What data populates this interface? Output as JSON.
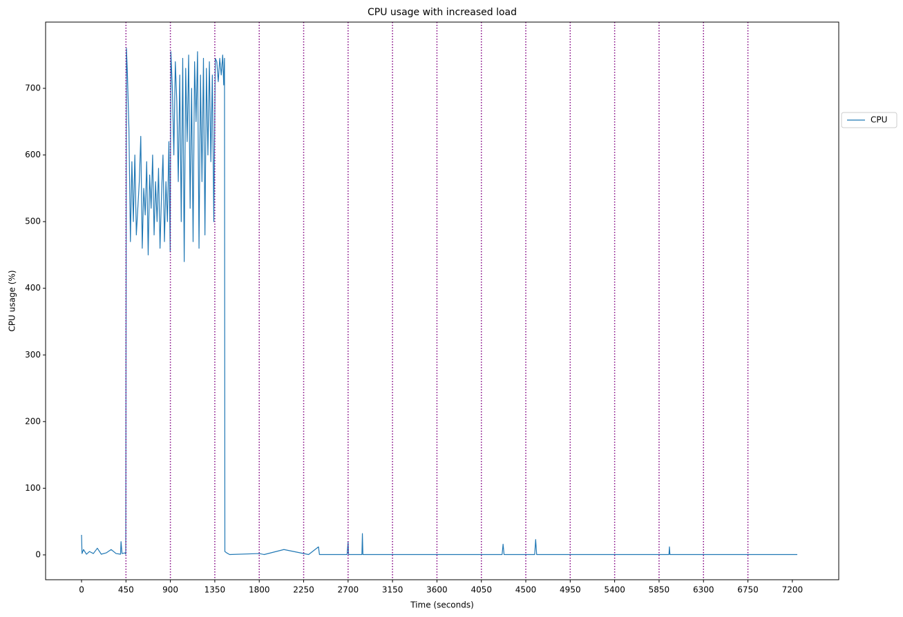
{
  "chart_data": {
    "type": "line",
    "title": "CPU usage with increased load",
    "x_label": "Time (seconds)",
    "y_label": "CPU usage (%)",
    "x": [
      0,
      5,
      20,
      50,
      80,
      120,
      160,
      200,
      250,
      300,
      350,
      395,
      400,
      410,
      440,
      448,
      455,
      465,
      480,
      495,
      510,
      525,
      540,
      555,
      570,
      585,
      600,
      615,
      630,
      645,
      660,
      675,
      690,
      705,
      720,
      735,
      750,
      765,
      780,
      795,
      810,
      825,
      840,
      855,
      870,
      885,
      898,
      905,
      920,
      935,
      950,
      965,
      980,
      995,
      1010,
      1025,
      1040,
      1055,
      1070,
      1085,
      1100,
      1115,
      1130,
      1145,
      1160,
      1175,
      1190,
      1205,
      1220,
      1235,
      1250,
      1265,
      1280,
      1295,
      1310,
      1325,
      1340,
      1355,
      1370,
      1385,
      1400,
      1415,
      1430,
      1440,
      1448,
      1452,
      1470,
      1500,
      1800,
      1850,
      2050,
      2300,
      2400,
      2410,
      2690,
      2700,
      2705,
      2840,
      2845,
      2850,
      3150,
      4000,
      4260,
      4270,
      4280,
      4590,
      4600,
      4610,
      5950,
      5955,
      5960,
      6500,
      7250
    ],
    "series": [
      {
        "name": "CPU",
        "color": "#1f77b4",
        "values": [
          30,
          2,
          8,
          1,
          5,
          2,
          10,
          1,
          3,
          8,
          2,
          1,
          20,
          2,
          3,
          1,
          760,
          720,
          640,
          470,
          590,
          500,
          600,
          480,
          520,
          560,
          628,
          460,
          550,
          510,
          590,
          450,
          570,
          520,
          600,
          480,
          560,
          500,
          580,
          460,
          540,
          600,
          470,
          560,
          500,
          620,
          455,
          755,
          700,
          600,
          740,
          680,
          560,
          720,
          500,
          745,
          440,
          730,
          620,
          750,
          520,
          700,
          470,
          740,
          650,
          755,
          460,
          720,
          560,
          745,
          480,
          730,
          600,
          740,
          590,
          720,
          500,
          745,
          740,
          710,
          745,
          720,
          750,
          705,
          745,
          5,
          3,
          0.5,
          2,
          0.5,
          8,
          0.5,
          12,
          0.5,
          0.5,
          20,
          0.5,
          0.5,
          32,
          0.5,
          0.5,
          0.5,
          0.5,
          16,
          0.5,
          0.5,
          23,
          0.5,
          0.5,
          12,
          0.5,
          0.5,
          0.5
        ]
      }
    ],
    "vlines": [
      450,
      900,
      1350,
      1800,
      2250,
      2700,
      3150,
      3600,
      4050,
      4500,
      4950,
      5400,
      5850,
      6300,
      6750
    ],
    "vline_color": "#800080",
    "xlim": [
      -364,
      7670
    ],
    "ylim": [
      -37.3,
      799.4
    ],
    "xticks": [
      0,
      450,
      900,
      1350,
      1800,
      2250,
      2700,
      3150,
      3600,
      4050,
      4500,
      4950,
      5400,
      5850,
      6300,
      6750,
      7200
    ],
    "yticks": [
      0,
      100,
      200,
      300,
      400,
      500,
      600,
      700
    ],
    "legend": "outside right",
    "grid": false
  }
}
